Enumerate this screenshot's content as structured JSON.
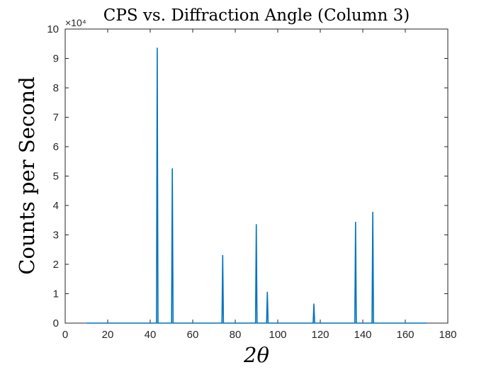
{
  "chart_data": {
    "type": "line",
    "title": "CPS vs. Diffraction Angle (Column 3)",
    "xlabel": "2θ",
    "ylabel": "Counts per Second",
    "xlim": [
      0,
      180
    ],
    "ylim": [
      0,
      10
    ],
    "y_exponent_label": "×10⁴",
    "x_ticks": [
      0,
      20,
      40,
      60,
      80,
      100,
      120,
      140,
      160,
      180
    ],
    "y_ticks": [
      0,
      1,
      2,
      3,
      4,
      5,
      6,
      7,
      8,
      9,
      10
    ],
    "grid": false,
    "series": [
      {
        "color": "#0072BD",
        "x_range": [
          10,
          170
        ],
        "baseline": 0.0,
        "peaks": [
          {
            "x": 43.3,
            "y": 9.35
          },
          {
            "x": 50.4,
            "y": 5.25
          },
          {
            "x": 74.1,
            "y": 2.3
          },
          {
            "x": 89.9,
            "y": 3.35
          },
          {
            "x": 95.1,
            "y": 1.05
          },
          {
            "x": 117.0,
            "y": 0.65
          },
          {
            "x": 136.6,
            "y": 3.43
          },
          {
            "x": 144.7,
            "y": 3.77
          }
        ]
      }
    ]
  }
}
